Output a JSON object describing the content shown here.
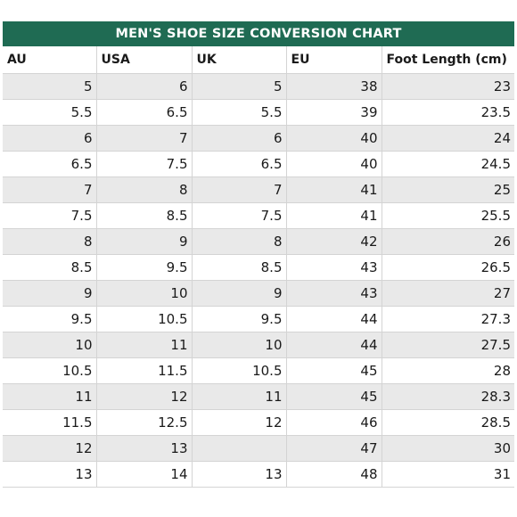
{
  "title": "MEN'S SHOE SIZE CONVERSION CHART",
  "columns": [
    "AU",
    "USA",
    "UK",
    "EU",
    "Foot Length (cm)"
  ],
  "rows": [
    [
      "5",
      "6",
      "5",
      "38",
      "23"
    ],
    [
      "5.5",
      "6.5",
      "5.5",
      "39",
      "23.5"
    ],
    [
      "6",
      "7",
      "6",
      "40",
      "24"
    ],
    [
      "6.5",
      "7.5",
      "6.5",
      "40",
      "24.5"
    ],
    [
      "7",
      "8",
      "7",
      "41",
      "25"
    ],
    [
      "7.5",
      "8.5",
      "7.5",
      "41",
      "25.5"
    ],
    [
      "8",
      "9",
      "8",
      "42",
      "26"
    ],
    [
      "8.5",
      "9.5",
      "8.5",
      "43",
      "26.5"
    ],
    [
      "9",
      "10",
      "9",
      "43",
      "27"
    ],
    [
      "9.5",
      "10.5",
      "9.5",
      "44",
      "27.3"
    ],
    [
      "10",
      "11",
      "10",
      "44",
      "27.5"
    ],
    [
      "10.5",
      "11.5",
      "10.5",
      "45",
      "28"
    ],
    [
      "11",
      "12",
      "11",
      "45",
      "28.3"
    ],
    [
      "11.5",
      "12.5",
      "12",
      "46",
      "28.5"
    ],
    [
      "12",
      "13",
      "",
      "47",
      "30"
    ],
    [
      "13",
      "14",
      "13",
      "48",
      "31"
    ]
  ],
  "colors": {
    "header_bg": "#1f6b53",
    "row_shade": "#e9e9e9",
    "grid_line": "#d4d4d4"
  }
}
